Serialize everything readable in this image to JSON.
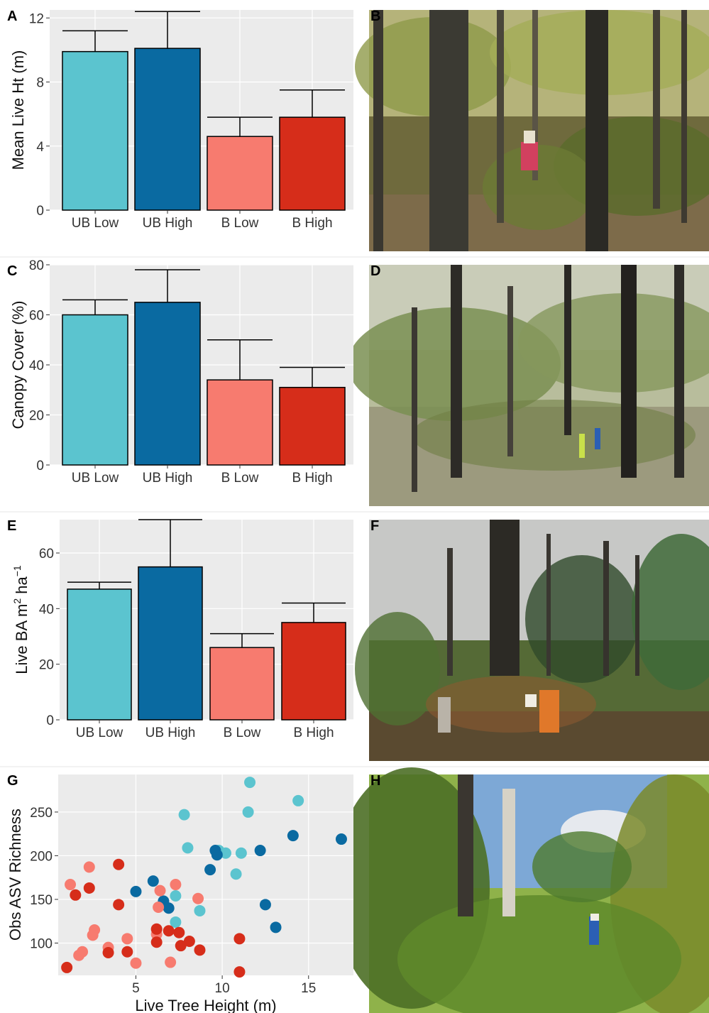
{
  "figure": {
    "panel_letters": [
      "A",
      "B",
      "C",
      "D",
      "E",
      "F",
      "G",
      "H"
    ]
  },
  "colors": {
    "ub_low": "#5bc4cf",
    "ub_high": "#0a6aa1",
    "b_low": "#f77b6f",
    "b_high": "#d62d1a",
    "panel_bg": "#ebebeb",
    "grid": "#ffffff"
  },
  "photos": [
    {
      "panel": "B",
      "description_icon": "forest-photo-unburnt-low"
    },
    {
      "panel": "D",
      "description_icon": "forest-photo-unburnt-high"
    },
    {
      "panel": "F",
      "description_icon": "forest-photo-burnt-low"
    },
    {
      "panel": "H",
      "description_icon": "forest-photo-burnt-high"
    }
  ],
  "chart_data": [
    {
      "panel": "A",
      "type": "bar",
      "title": "",
      "xlabel": "",
      "ylabel": "Mean Live Ht (m)",
      "categories": [
        "UB Low",
        "UB High",
        "B Low",
        "B High"
      ],
      "values": [
        9.9,
        10.1,
        4.6,
        5.8
      ],
      "error_upper": [
        11.2,
        12.4,
        5.8,
        7.5
      ],
      "ylim": [
        0,
        12.5
      ],
      "yticks": [
        0,
        4,
        8,
        12
      ],
      "grid": true
    },
    {
      "panel": "C",
      "type": "bar",
      "title": "",
      "xlabel": "",
      "ylabel": "Canopy Cover (%)",
      "categories": [
        "UB Low",
        "UB High",
        "B Low",
        "B High"
      ],
      "values": [
        60,
        65,
        34,
        31
      ],
      "error_upper": [
        66,
        78,
        50,
        39
      ],
      "ylim": [
        0,
        80
      ],
      "yticks": [
        0,
        20,
        40,
        60,
        80
      ],
      "grid": true
    },
    {
      "panel": "E",
      "type": "bar",
      "title": "",
      "xlabel": "",
      "ylabel": "Live BA m",
      "ylabel_sup1": "2",
      "ylabel_mid": " ha",
      "ylabel_sup2": "−1",
      "categories": [
        "UB Low",
        "UB High",
        "B Low",
        "B High"
      ],
      "values": [
        47,
        55,
        26,
        35
      ],
      "error_upper": [
        49.5,
        72,
        31,
        42
      ],
      "ylim": [
        0,
        72
      ],
      "yticks": [
        0,
        20,
        40,
        60
      ],
      "grid": true
    },
    {
      "panel": "G",
      "type": "scatter",
      "title": "",
      "xlabel": "Live Tree Height (m)",
      "ylabel": "Obs ASV Richness",
      "xlim": [
        0.5,
        17.6
      ],
      "ylim": [
        63,
        293
      ],
      "xticks": [
        5,
        10,
        15
      ],
      "yticks": [
        100,
        150,
        200,
        250
      ],
      "grid": true,
      "series": [
        {
          "group": "ub_low",
          "points": [
            [
              11.6,
              284
            ],
            [
              14.4,
              263
            ],
            [
              11.5,
              250
            ],
            [
              7.8,
              247
            ],
            [
              8.0,
              209
            ],
            [
              9.8,
              206
            ],
            [
              10.2,
              203
            ],
            [
              11.1,
              203
            ],
            [
              10.8,
              179
            ],
            [
              7.3,
              154
            ],
            [
              8.7,
              137
            ],
            [
              7.3,
              124
            ]
          ]
        },
        {
          "group": "ub_high",
          "points": [
            [
              14.1,
              223
            ],
            [
              16.9,
              219
            ],
            [
              12.2,
              206
            ],
            [
              9.6,
              206
            ],
            [
              9.7,
              201
            ],
            [
              9.3,
              184
            ],
            [
              6.0,
              171
            ],
            [
              5.0,
              159
            ],
            [
              6.6,
              148
            ],
            [
              12.5,
              144
            ],
            [
              6.9,
              140
            ],
            [
              13.1,
              118
            ]
          ]
        },
        {
          "group": "b_low",
          "points": [
            [
              1.2,
              167
            ],
            [
              2.3,
              187
            ],
            [
              6.4,
              160
            ],
            [
              7.3,
              167
            ],
            [
              8.6,
              151
            ],
            [
              6.3,
              141
            ],
            [
              2.6,
              115
            ],
            [
              2.5,
              109
            ],
            [
              4.5,
              105
            ],
            [
              6.2,
              110
            ],
            [
              1.9,
              90
            ],
            [
              3.4,
              95
            ],
            [
              1.7,
              86
            ],
            [
              7.0,
              78
            ],
            [
              5.0,
              77
            ]
          ]
        },
        {
          "group": "b_high",
          "points": [
            [
              4.0,
              190
            ],
            [
              1.5,
              155
            ],
            [
              2.3,
              163
            ],
            [
              4.0,
              144
            ],
            [
              6.2,
              116
            ],
            [
              6.9,
              114
            ],
            [
              7.5,
              112
            ],
            [
              6.2,
              101
            ],
            [
              8.1,
              102
            ],
            [
              7.6,
              97
            ],
            [
              8.7,
              92
            ],
            [
              11.0,
              105
            ],
            [
              3.4,
              89
            ],
            [
              4.5,
              90
            ],
            [
              11.0,
              67
            ],
            [
              1.0,
              72
            ]
          ]
        }
      ]
    }
  ]
}
